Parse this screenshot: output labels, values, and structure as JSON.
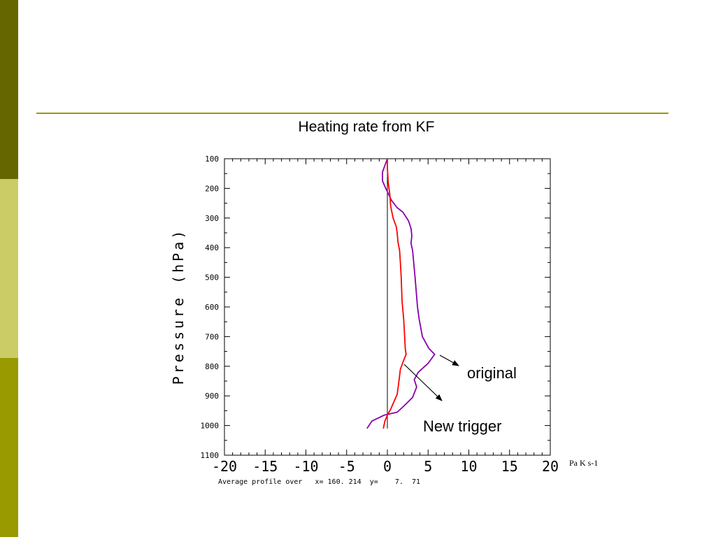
{
  "slide": {
    "title": "Heating rate from KF",
    "sidebar_colors": [
      "#666600",
      "#cccc66",
      "#999900"
    ],
    "rule_color": "#999900"
  },
  "chart_data": {
    "type": "line",
    "title": "",
    "xlabel": "",
    "ylabel": "Pressure (hPa)",
    "x_unit": "Pa K s-1",
    "footnote": "Average profile over   x= 160. 214  y=    7.  71",
    "xlim": [
      -20,
      20
    ],
    "ylim": [
      1100,
      100
    ],
    "x_ticks": [
      -20,
      -15,
      -10,
      -5,
      0,
      5,
      10,
      15,
      20
    ],
    "x_tick_labels": [
      "-20",
      "-15",
      "-10",
      "-5",
      "0",
      "5",
      "10",
      "15",
      "20"
    ],
    "y_ticks": [
      100,
      200,
      300,
      400,
      500,
      600,
      700,
      800,
      900,
      1000,
      1100
    ],
    "y_tick_labels": [
      "100",
      "200",
      "300",
      "400",
      "500",
      "600",
      "700",
      "800",
      "900",
      "1000",
      "1100"
    ],
    "grid": false,
    "zero_line": true,
    "series": [
      {
        "color": "#8800aa",
        "points": [
          [
            0,
            100
          ],
          [
            -0.6,
            145
          ],
          [
            -0.6,
            175
          ],
          [
            -0.2,
            200
          ],
          [
            0.5,
            240
          ],
          [
            1.2,
            265
          ],
          [
            1.9,
            280
          ],
          [
            2.6,
            310
          ],
          [
            2.9,
            335
          ],
          [
            3.0,
            360
          ],
          [
            2.9,
            385
          ],
          [
            3.1,
            410
          ],
          [
            3.4,
            500
          ],
          [
            3.7,
            600
          ],
          [
            3.9,
            640
          ],
          [
            4.3,
            700
          ],
          [
            5.1,
            740
          ],
          [
            5.8,
            760
          ],
          [
            5.0,
            790
          ],
          [
            3.8,
            820
          ],
          [
            3.3,
            845
          ],
          [
            3.6,
            870
          ],
          [
            3.1,
            905
          ],
          [
            2.0,
            935
          ],
          [
            1.2,
            955
          ],
          [
            -0.4,
            965
          ],
          [
            -1.9,
            985
          ],
          [
            -2.5,
            1010
          ]
        ]
      },
      {
        "color": "#ff0000",
        "points": [
          [
            0,
            100
          ],
          [
            0,
            130
          ],
          [
            0.1,
            180
          ],
          [
            0.3,
            220
          ],
          [
            0.4,
            260
          ],
          [
            0.7,
            300
          ],
          [
            1.1,
            330
          ],
          [
            1.2,
            350
          ],
          [
            1.3,
            380
          ],
          [
            1.5,
            410
          ],
          [
            1.6,
            450
          ],
          [
            1.7,
            500
          ],
          [
            1.8,
            580
          ],
          [
            2.0,
            640
          ],
          [
            2.1,
            690
          ],
          [
            2.2,
            740
          ],
          [
            2.3,
            760
          ],
          [
            2.0,
            780
          ],
          [
            1.6,
            810
          ],
          [
            1.4,
            855
          ],
          [
            1.2,
            895
          ],
          [
            0.8,
            920
          ],
          [
            0.4,
            945
          ],
          [
            0.0,
            965
          ],
          [
            -0.3,
            985
          ],
          [
            -0.5,
            1010
          ]
        ]
      }
    ],
    "annotations": [
      {
        "text": "original"
      },
      {
        "text": "New trigger"
      }
    ]
  }
}
